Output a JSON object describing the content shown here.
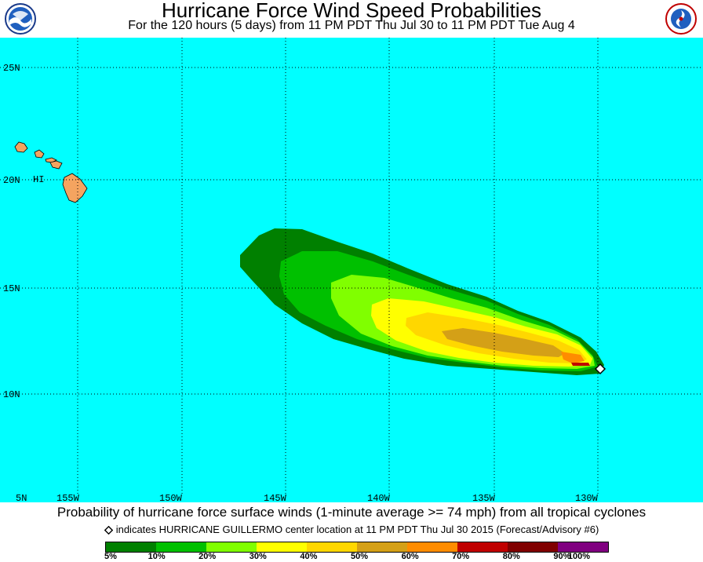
{
  "header": {
    "title": "Hurricane Force Wind Speed Probabilities",
    "subtitle": "For the 120 hours (5 days) from 11 PM PDT Thu Jul 30 to 11 PM PDT Tue Aug 4",
    "logo_left": "NOAA",
    "logo_right": "NATIONAL WEATHER SERVICE"
  },
  "map": {
    "ocean_color": "#00ffff",
    "land_color": "#f4a460",
    "region_label": "HI",
    "latitude_labels": [
      "25N",
      "20N",
      "15N",
      "10N",
      "5N"
    ],
    "longitude_labels": [
      "155W",
      "150W",
      "145W",
      "140W",
      "135W",
      "130W"
    ]
  },
  "footer": {
    "caption": "Probability of hurricane force surface winds (1-minute average >= 74 mph) from all tropical cyclones",
    "marker_note": "indicates HURRICANE GUILLERMO center location at 11 PM PDT Thu Jul 30 2015 (Forecast/Advisory #6)"
  },
  "legend": {
    "colors": [
      "#008000",
      "#00c000",
      "#80ff00",
      "#ffff00",
      "#ffd700",
      "#d4a017",
      "#ff8c00",
      "#c00000",
      "#800000",
      "#800080"
    ],
    "labels": [
      "5%",
      "10%",
      "20%",
      "30%",
      "40%",
      "50%",
      "60%",
      "70%",
      "80%",
      "90%",
      "100%"
    ]
  }
}
